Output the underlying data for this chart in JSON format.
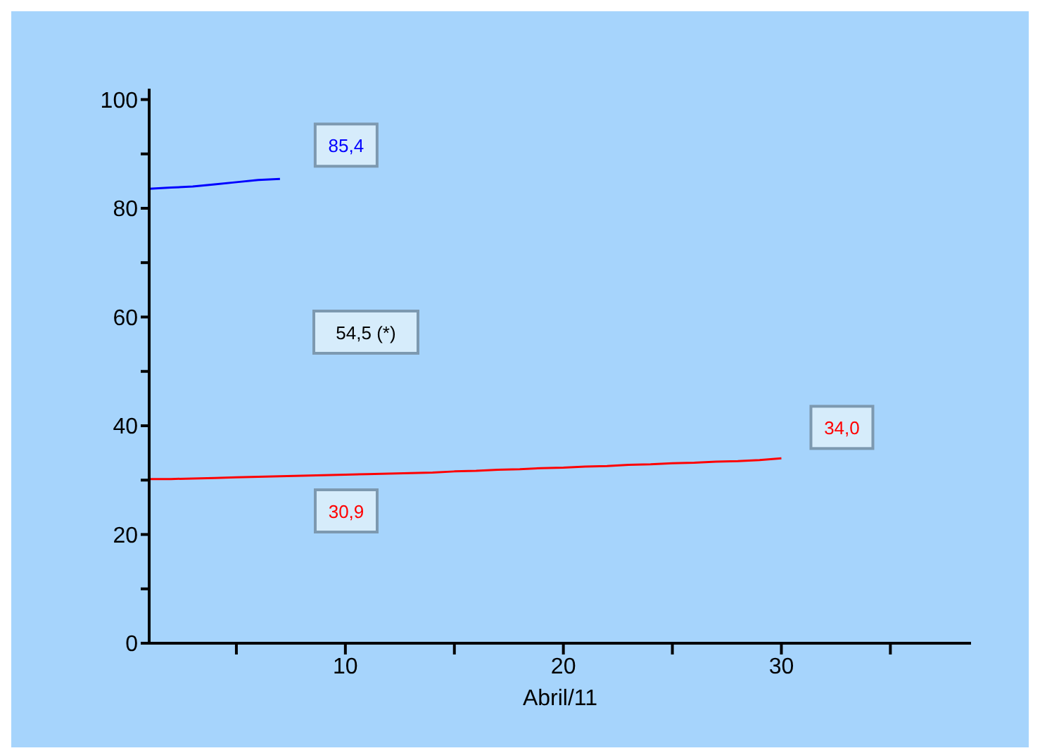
{
  "chart_data": {
    "type": "line",
    "xlabel": "Abril/11",
    "x": [
      1,
      2,
      3,
      4,
      5,
      6,
      7,
      8,
      9,
      10,
      11,
      12,
      13,
      14,
      15,
      16,
      17,
      18,
      19,
      20,
      21,
      22,
      23,
      24,
      25,
      26,
      27,
      28,
      29,
      30
    ],
    "series": [
      {
        "color": "#0000ff",
        "x": [
          1,
          2,
          3,
          4,
          5,
          6,
          7
        ],
        "values": [
          83.6,
          83.8,
          84.0,
          84.4,
          84.8,
          85.2,
          85.4
        ]
      },
      {
        "color": "#ff0000",
        "values": [
          30.2,
          30.2,
          30.3,
          30.4,
          30.5,
          30.6,
          30.7,
          30.8,
          30.9,
          31.0,
          31.1,
          31.2,
          31.3,
          31.4,
          31.6,
          31.7,
          31.9,
          32.0,
          32.2,
          32.3,
          32.5,
          32.6,
          32.8,
          32.9,
          33.1,
          33.2,
          33.4,
          33.5,
          33.7,
          34.0
        ]
      }
    ],
    "xlim": [
      1,
      38.7
    ],
    "xticks": [
      {
        "value": 5,
        "label": null
      },
      10,
      {
        "value": 15,
        "label": null
      },
      20,
      {
        "value": 25,
        "label": null
      },
      30,
      {
        "value": 35,
        "label": null
      }
    ],
    "ylim": [
      0,
      102
    ],
    "yticks": [
      0,
      {
        "value": 10,
        "label": null
      },
      20,
      {
        "value": 30,
        "label": null
      },
      40,
      {
        "value": 50,
        "label": null
      },
      60,
      {
        "value": 70,
        "label": null
      },
      80,
      {
        "value": 90,
        "label": null
      },
      100
    ],
    "annotations": [
      {
        "text": "85,4",
        "x": 7,
        "y": 85.4
      },
      "54,5 (*)",
      "30,9",
      {
        "text": "34,0",
        "x": 30,
        "y": 34
      }
    ],
    "grid": false,
    "legend": false,
    "marker": "none",
    "line_style": "solid"
  }
}
